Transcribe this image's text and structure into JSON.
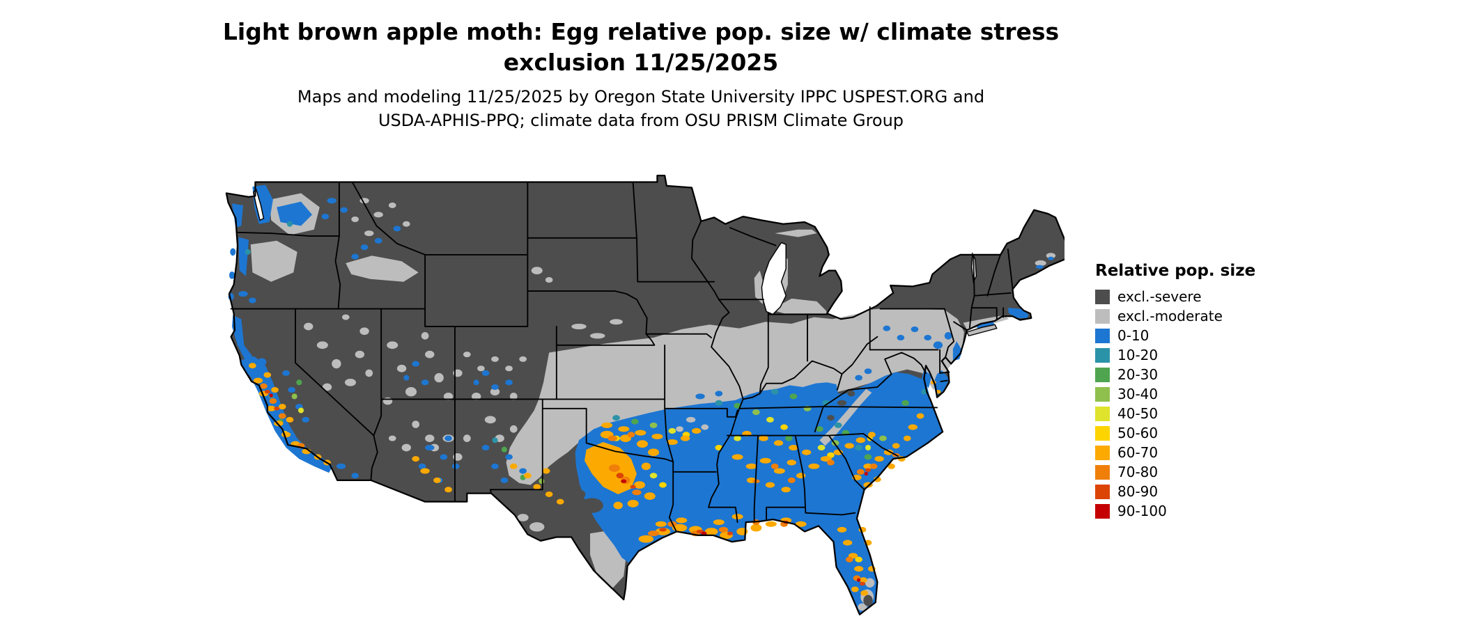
{
  "title": {
    "line1": "Light brown apple moth: Egg relative pop. size w/ climate stress",
    "line2": "exclusion 11/25/2025"
  },
  "subtitle": {
    "line1": "Maps and modeling 11/25/2025 by Oregon State University IPPC USPEST.ORG and",
    "line2": "USDA-APHIS-PPQ; climate data from OSU PRISM Climate Group"
  },
  "legend": {
    "title": "Relative pop. size",
    "entries": [
      {
        "label": "excl.-severe",
        "color": "#4d4d4d"
      },
      {
        "label": "excl.-moderate",
        "color": "#bdbdbd"
      },
      {
        "label": "0-10",
        "color": "#1d76d2"
      },
      {
        "label": "10-20",
        "color": "#2b93a8"
      },
      {
        "label": "20-30",
        "color": "#4fa54f"
      },
      {
        "label": "30-40",
        "color": "#8fc04d"
      },
      {
        "label": "40-50",
        "color": "#dfe32b"
      },
      {
        "label": "50-60",
        "color": "#fdd400"
      },
      {
        "label": "60-70",
        "color": "#fca902"
      },
      {
        "label": "70-80",
        "color": "#f07f0a"
      },
      {
        "label": "80-90",
        "color": "#dc4405"
      },
      {
        "label": "90-100",
        "color": "#c40000"
      }
    ]
  },
  "map": {
    "description": "Contiguous United States raster map of relative population size with climate-stress exclusion zones",
    "colors": {
      "excl_severe": "#4d4d4d",
      "excl_moderate": "#bdbdbd",
      "pop_0_10": "#1d76d2",
      "pop_10_20": "#2b93a8",
      "pop_20_30": "#4fa54f",
      "pop_30_40": "#8fc04d",
      "pop_40_50": "#dfe32b",
      "pop_50_60": "#fdd400",
      "pop_60_70": "#fca902",
      "pop_70_80": "#f07f0a",
      "pop_80_90": "#dc4405",
      "pop_90_100": "#c40000",
      "border": "#000000",
      "water": "#ffffff"
    }
  }
}
